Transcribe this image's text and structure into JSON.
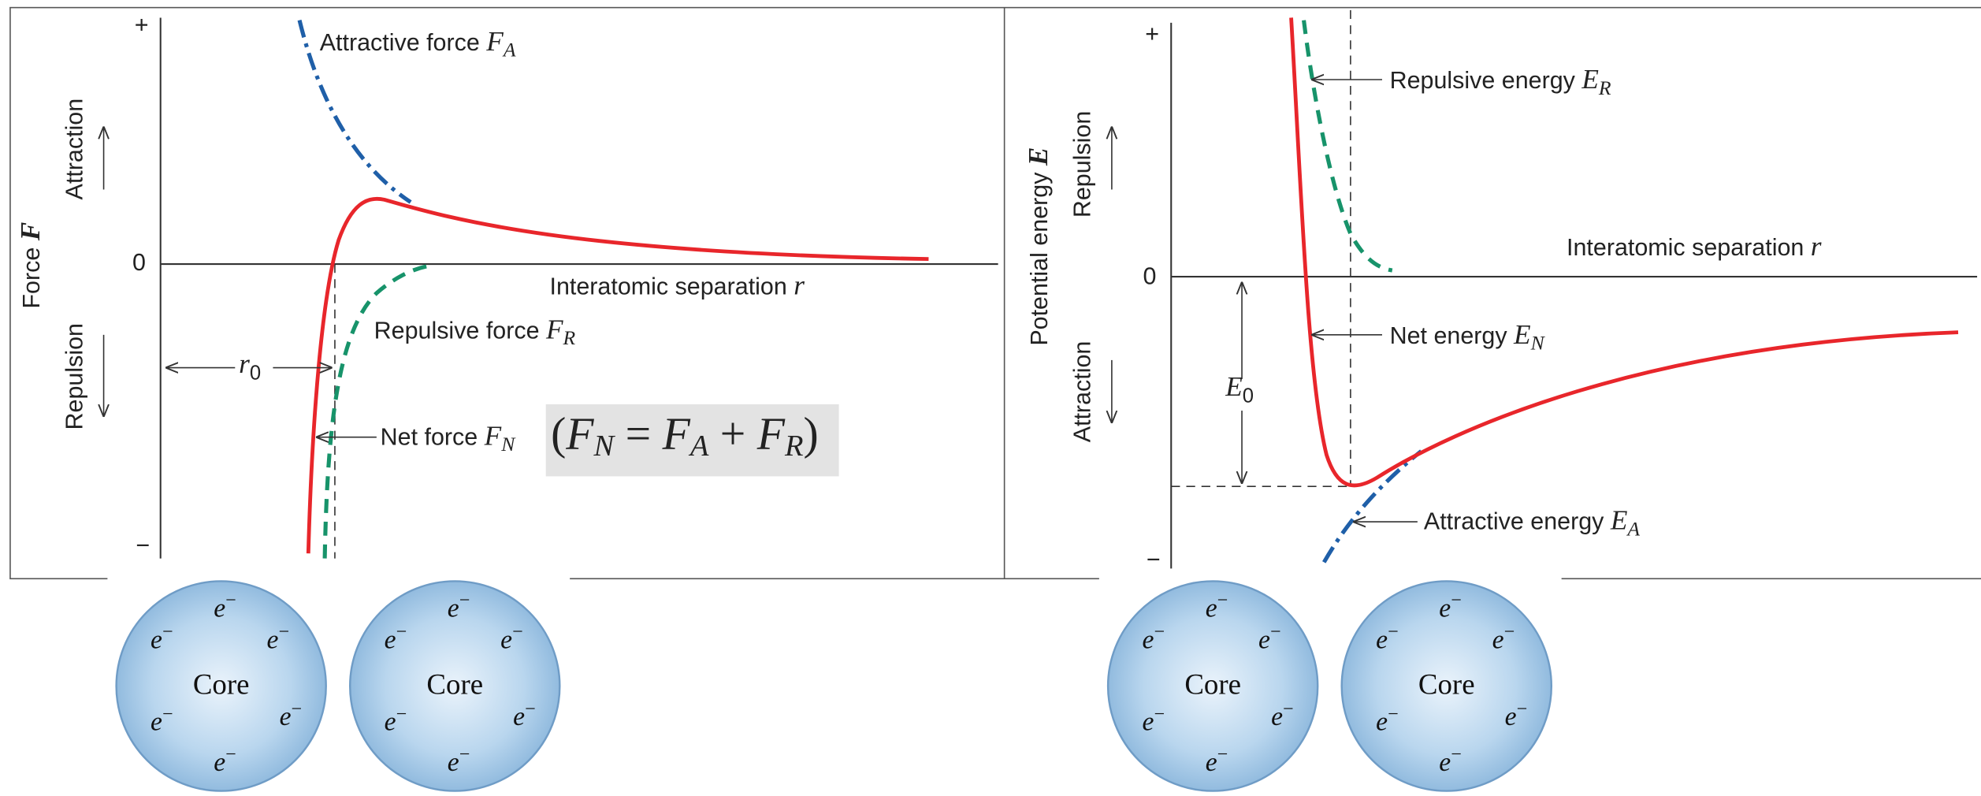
{
  "force_panel": {
    "plus": "+",
    "zero": "0",
    "minus": "−",
    "y_axis_label": {
      "text": "Force ",
      "symbol": "F"
    },
    "attraction": "Attraction",
    "repulsion": "Repulsion",
    "x_axis_label": {
      "text": "Interatomic separation ",
      "symbol": "r"
    },
    "attractive": {
      "text": "Attractive force ",
      "symbol": "F",
      "sub": "A"
    },
    "repulsive": {
      "text": "Repulsive force ",
      "symbol": "F",
      "sub": "R"
    },
    "net": {
      "text": "Net force ",
      "symbol": "F",
      "sub": "N"
    },
    "r0": {
      "symbol": "r",
      "sub": "0"
    },
    "equation": {
      "open": "(",
      "lhs": {
        "symbol": "F",
        "sub": "N"
      },
      "eq": " = ",
      "a": {
        "symbol": "F",
        "sub": "A"
      },
      "plus": " + ",
      "b": {
        "symbol": "F",
        "sub": "R"
      },
      "close": ")"
    }
  },
  "energy_panel": {
    "plus": "+",
    "zero": "0",
    "minus": "−",
    "y_axis_label": {
      "text": "Potential energy ",
      "symbol": "E"
    },
    "repulsion": "Repulsion",
    "attraction": "Attraction",
    "x_axis_label": {
      "text": "Interatomic separation ",
      "symbol": "r"
    },
    "repulsive": {
      "text": "Repulsive energy ",
      "symbol": "E",
      "sub": "R"
    },
    "net": {
      "text": "Net energy ",
      "symbol": "E",
      "sub": "N"
    },
    "attractive": {
      "text": "Attractive energy ",
      "symbol": "E",
      "sub": "A"
    },
    "e0": {
      "symbol": "E",
      "sub": "0"
    }
  },
  "atoms": [
    {
      "core": "Core",
      "electrons": [
        {
          "symbol": "e",
          "charge": "−"
        },
        {
          "symbol": "e",
          "charge": "−"
        },
        {
          "symbol": "e",
          "charge": "−"
        },
        {
          "symbol": "e",
          "charge": "−"
        },
        {
          "symbol": "e",
          "charge": "−"
        },
        {
          "symbol": "e",
          "charge": "−"
        }
      ]
    },
    {
      "core": "Core",
      "electrons": [
        {
          "symbol": "e",
          "charge": "−"
        },
        {
          "symbol": "e",
          "charge": "−"
        },
        {
          "symbol": "e",
          "charge": "−"
        },
        {
          "symbol": "e",
          "charge": "−"
        },
        {
          "symbol": "e",
          "charge": "−"
        },
        {
          "symbol": "e",
          "charge": "−"
        }
      ]
    },
    {
      "core": "Core",
      "electrons": [
        {
          "symbol": "e",
          "charge": "−"
        },
        {
          "symbol": "e",
          "charge": "−"
        },
        {
          "symbol": "e",
          "charge": "−"
        },
        {
          "symbol": "e",
          "charge": "−"
        },
        {
          "symbol": "e",
          "charge": "−"
        },
        {
          "symbol": "e",
          "charge": "−"
        }
      ]
    },
    {
      "core": "Core",
      "electrons": [
        {
          "symbol": "e",
          "charge": "−"
        },
        {
          "symbol": "e",
          "charge": "−"
        },
        {
          "symbol": "e",
          "charge": "−"
        },
        {
          "symbol": "e",
          "charge": "−"
        },
        {
          "symbol": "e",
          "charge": "−"
        },
        {
          "symbol": "e",
          "charge": "−"
        }
      ]
    }
  ]
}
